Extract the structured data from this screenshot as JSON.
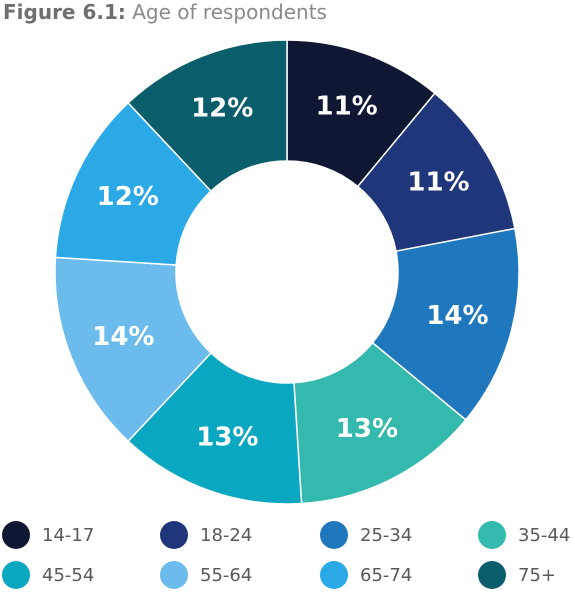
{
  "figure": {
    "label": "Figure 6.1:",
    "caption": "Age of respondents"
  },
  "chart_data": {
    "type": "pie",
    "variant": "donut",
    "title": "Age of respondents",
    "categories": [
      "14-17",
      "18-24",
      "25-34",
      "35-44",
      "45-54",
      "55-64",
      "65-74",
      "75+"
    ],
    "values": [
      11,
      11,
      14,
      13,
      13,
      14,
      12,
      12
    ],
    "data_labels": [
      "11%",
      "11%",
      "14%",
      "13%",
      "13%",
      "14%",
      "12%",
      "12%"
    ],
    "unit": "%",
    "colors": [
      "#0f1733",
      "#20367a",
      "#1f78bd",
      "#33b9ad",
      "#0aa7c0",
      "#6bbcec",
      "#2aa9e6",
      "#0a5e6b"
    ],
    "legend_position": "bottom"
  }
}
